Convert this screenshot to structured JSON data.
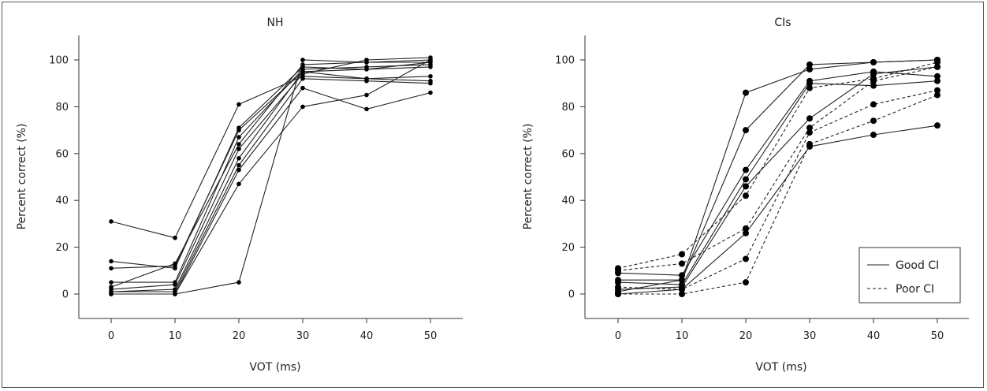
{
  "chart_data": [
    {
      "type": "line",
      "title": "NH",
      "xlabel": "VOT (ms)",
      "ylabel": "Percent correct (%)",
      "x": [
        0,
        10,
        20,
        30,
        40,
        50
      ],
      "x_ticks": [
        "0",
        "10",
        "20",
        "30",
        "40",
        "50"
      ],
      "y_ticks": [
        "0",
        "20",
        "40",
        "60",
        "80",
        "100"
      ],
      "xlim": [
        -5,
        55
      ],
      "ylim": [
        -10,
        110
      ],
      "series": [
        {
          "values": [
            31,
            24,
            81,
            93,
            92,
            91
          ]
        },
        {
          "values": [
            14,
            11,
            71,
            97,
            96,
            97
          ]
        },
        {
          "values": [
            11,
            12,
            70,
            95,
            92,
            93
          ]
        },
        {
          "values": [
            5,
            5,
            67,
            96,
            97,
            98
          ]
        },
        {
          "values": [
            3,
            13,
            64,
            98,
            99,
            100
          ]
        },
        {
          "values": [
            2,
            4,
            62,
            94,
            100,
            101
          ]
        },
        {
          "values": [
            1,
            2,
            58,
            95,
            96,
            99
          ]
        },
        {
          "values": [
            1,
            1,
            55,
            92,
            91,
            90
          ]
        },
        {
          "values": [
            0,
            0,
            53,
            88,
            79,
            86
          ]
        },
        {
          "values": [
            0,
            0,
            47,
            80,
            85,
            100
          ]
        },
        {
          "values": [
            0,
            0,
            5,
            100,
            99,
            99
          ]
        }
      ]
    },
    {
      "type": "line",
      "title": "CIs",
      "xlabel": "VOT (ms)",
      "ylabel": "Percent correct (%)",
      "x": [
        0,
        10,
        20,
        30,
        40,
        50
      ],
      "x_ticks": [
        "0",
        "10",
        "20",
        "30",
        "40",
        "50"
      ],
      "y_ticks": [
        "0",
        "20",
        "40",
        "60",
        "80",
        "100"
      ],
      "xlim": [
        -5,
        55
      ],
      "ylim": [
        -10,
        110
      ],
      "legend": {
        "position": "bottom-right",
        "entries": [
          "Good CI",
          "Poor CI"
        ]
      },
      "series": [
        {
          "group": "Good CI",
          "values": [
            1,
            6,
            86,
            96,
            99,
            100
          ]
        },
        {
          "group": "Good CI",
          "values": [
            6,
            6,
            70,
            98,
            99,
            100
          ]
        },
        {
          "group": "Good CI",
          "values": [
            9,
            8,
            53,
            91,
            95,
            93
          ]
        },
        {
          "group": "Good CI",
          "values": [
            5,
            4,
            49,
            90,
            89,
            91
          ]
        },
        {
          "group": "Good CI",
          "values": [
            2,
            3,
            46,
            75,
            94,
            97
          ]
        },
        {
          "group": "Good CI",
          "values": [
            0,
            2,
            26,
            63,
            68,
            72
          ]
        },
        {
          "group": "Poor CI",
          "values": [
            11,
            17,
            42,
            88,
            92,
            99
          ]
        },
        {
          "group": "Poor CI",
          "values": [
            10,
            13,
            28,
            71,
            91,
            97
          ]
        },
        {
          "group": "Poor CI",
          "values": [
            3,
            2,
            15,
            69,
            81,
            87
          ]
        },
        {
          "group": "Poor CI",
          "values": [
            0,
            0,
            5,
            64,
            74,
            85
          ]
        }
      ]
    }
  ]
}
